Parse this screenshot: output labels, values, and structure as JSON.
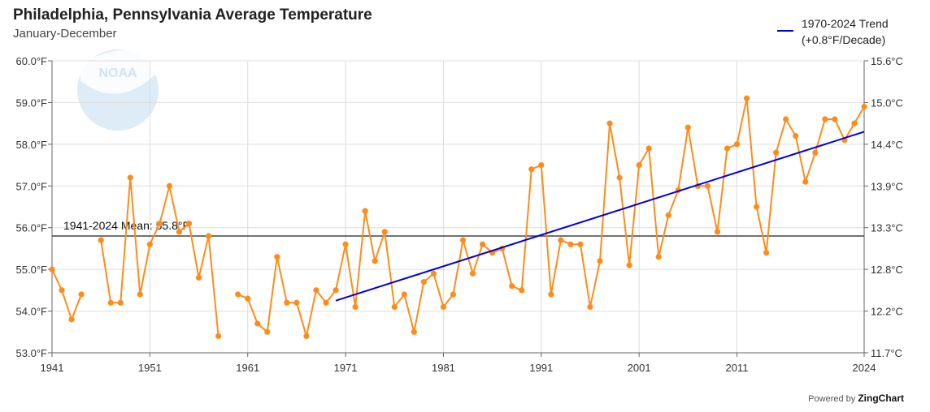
{
  "colors": {
    "series": "#ff8c1a",
    "trend": "#0000dd",
    "mean": "#444444",
    "grid": "#dddddd",
    "logo": "#cfe4f3"
  },
  "footer": {
    "powered_by": "Powered by",
    "brand": "ZingChart"
  },
  "logo": {
    "text": "NOAA",
    "icon": "noaa-logo-icon"
  },
  "chart_data": {
    "type": "line",
    "title": "Philadelphia, Pennsylvania Average Temperature",
    "subtitle": "January-December",
    "xlabel": "",
    "ylabel": "",
    "xlim": [
      1941,
      2024
    ],
    "ylim": [
      53.0,
      60.0
    ],
    "x_ticks": [
      "1941",
      "1951",
      "1961",
      "1971",
      "1981",
      "1991",
      "2001",
      "2011",
      "2024"
    ],
    "y_ticks_left": [
      "53.0°F",
      "54.0°F",
      "55.0°F",
      "56.0°F",
      "57.0°F",
      "58.0°F",
      "59.0°F",
      "60.0°F"
    ],
    "y_ticks_right": [
      "11.7°C",
      "12.2°C",
      "12.8°C",
      "13.3°C",
      "13.9°C",
      "14.4°C",
      "15.0°C",
      "15.6°C"
    ],
    "grid": true,
    "legend_position": "top-right",
    "series": [
      {
        "x": [
          1941,
          1942,
          1943,
          1944,
          1946,
          1947,
          1948,
          1949,
          1950,
          1951,
          1952,
          1953,
          1954,
          1955,
          1956,
          1957,
          1958,
          1960,
          1961,
          1962,
          1963,
          1964,
          1965,
          1966,
          1967,
          1968,
          1969,
          1970,
          1971,
          1972,
          1973,
          1974,
          1975,
          1976,
          1977,
          1978,
          1979,
          1980,
          1981,
          1982,
          1983,
          1984,
          1985,
          1986,
          1987,
          1988,
          1989,
          1990,
          1991,
          1992,
          1993,
          1994,
          1995,
          1996,
          1997,
          1998,
          1999,
          2000,
          2001,
          2002,
          2003,
          2004,
          2005,
          2006,
          2007,
          2008,
          2009,
          2010,
          2011,
          2012,
          2013,
          2014,
          2015,
          2016,
          2017,
          2018,
          2019,
          2020,
          2021,
          2022,
          2023,
          2024
        ],
        "values": [
          55.0,
          54.5,
          53.8,
          54.4,
          55.7,
          54.2,
          54.2,
          57.2,
          54.4,
          55.6,
          56.1,
          57.0,
          55.9,
          56.1,
          54.8,
          55.8,
          53.4,
          54.4,
          54.3,
          53.7,
          53.5,
          55.3,
          54.2,
          54.2,
          53.4,
          54.5,
          54.2,
          54.5,
          55.6,
          54.1,
          56.4,
          55.2,
          55.9,
          54.1,
          54.4,
          53.5,
          54.7,
          54.9,
          54.1,
          54.4,
          55.7,
          54.9,
          55.6,
          55.4,
          55.5,
          54.6,
          54.5,
          57.4,
          57.5,
          54.4,
          55.7,
          55.6,
          55.6,
          54.1,
          55.2,
          58.5,
          57.2,
          55.1,
          57.5,
          57.9,
          55.3,
          56.3,
          56.9,
          58.4,
          57.0,
          57.0,
          55.9,
          57.9,
          58.0,
          59.1,
          56.5,
          55.4,
          57.8,
          58.6,
          58.2,
          57.1,
          57.8,
          58.6,
          58.6,
          58.1,
          58.5,
          58.9
        ]
      }
    ],
    "trend": {
      "label": "1970-2024 Trend",
      "label2": "(+0.8°F/Decade)",
      "x": [
        1970,
        2024
      ],
      "values": [
        54.25,
        58.3
      ]
    },
    "mean": {
      "label": "1941-2024 Mean: 55.8°F",
      "value": 55.8
    }
  }
}
